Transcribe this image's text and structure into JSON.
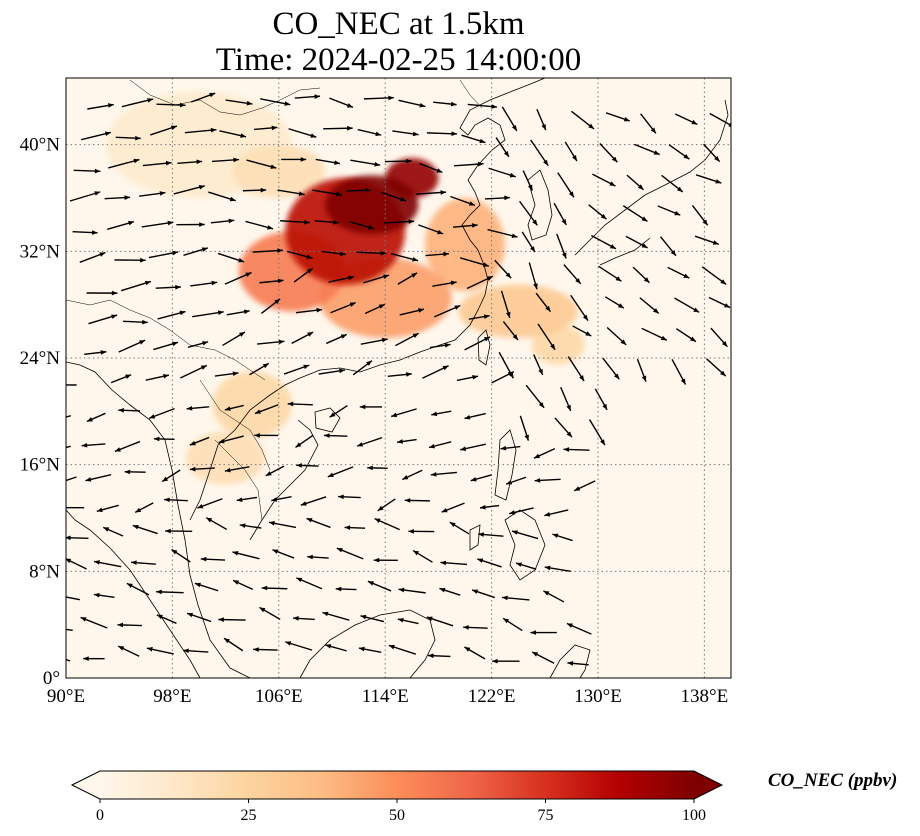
{
  "title": {
    "line1": "CO_NEC at 1.5km",
    "line2": "Time: 2024-02-25 14:00:00"
  },
  "map": {
    "lon_range": [
      90,
      140
    ],
    "lat_range": [
      0,
      45
    ],
    "lon_ticks": [
      {
        "value": 90,
        "label": "90°E"
      },
      {
        "value": 98,
        "label": "98°E"
      },
      {
        "value": 106,
        "label": "106°E"
      },
      {
        "value": 114,
        "label": "114°E"
      },
      {
        "value": 122,
        "label": "122°E"
      },
      {
        "value": 130,
        "label": "130°E"
      },
      {
        "value": 138,
        "label": "138°E"
      }
    ],
    "lat_ticks": [
      {
        "value": 0,
        "label": "0°"
      },
      {
        "value": 8,
        "label": "8°N"
      },
      {
        "value": 16,
        "label": "16°N"
      },
      {
        "value": 24,
        "label": "24°N"
      },
      {
        "value": 32,
        "label": "32°N"
      },
      {
        "value": 40,
        "label": "40°N"
      }
    ],
    "gridlines": "dotted",
    "vector_field": "wind arrows",
    "plumes": [
      {
        "lon": 113,
        "lat": 35.5,
        "value": 100,
        "rlon": 3.5,
        "rlat": 2.2
      },
      {
        "lon": 116,
        "lat": 37.5,
        "value": 95,
        "rlon": 2.0,
        "rlat": 1.5
      },
      {
        "lon": 111,
        "lat": 33.5,
        "value": 85,
        "rlon": 4.5,
        "rlat": 4.0
      },
      {
        "lon": 107,
        "lat": 30.5,
        "value": 55,
        "rlon": 4.0,
        "rlat": 3.0
      },
      {
        "lon": 114,
        "lat": 28.5,
        "value": 45,
        "rlon": 5.0,
        "rlat": 3.0
      },
      {
        "lon": 120,
        "lat": 32.5,
        "value": 40,
        "rlon": 3.0,
        "rlat": 3.5
      },
      {
        "lon": 124,
        "lat": 27.5,
        "value": 30,
        "rlon": 4.5,
        "rlat": 2.0
      },
      {
        "lon": 127,
        "lat": 25.0,
        "value": 22,
        "rlon": 2.0,
        "rlat": 1.5
      },
      {
        "lon": 104,
        "lat": 20.5,
        "value": 22,
        "rlon": 3.0,
        "rlat": 2.5
      },
      {
        "lon": 102,
        "lat": 16.5,
        "value": 18,
        "rlon": 3.0,
        "rlat": 2.0
      },
      {
        "lon": 106,
        "lat": 38.0,
        "value": 18,
        "rlon": 3.5,
        "rlat": 2.0
      },
      {
        "lon": 100,
        "lat": 40.0,
        "value": 10,
        "rlon": 7.0,
        "rlat": 4.0
      }
    ]
  },
  "colorbar": {
    "label": "CO_NEC (ppbv)",
    "min": 0,
    "max": 100,
    "ticks": [
      "0",
      "25",
      "50",
      "75",
      "100"
    ],
    "colormap": "OrRd",
    "colors": [
      "#fff7ec",
      "#fee8c8",
      "#fdd49e",
      "#fdbb84",
      "#fc8d59",
      "#ef6548",
      "#d7301f",
      "#b30000",
      "#7f0000"
    ],
    "extend": "both"
  }
}
